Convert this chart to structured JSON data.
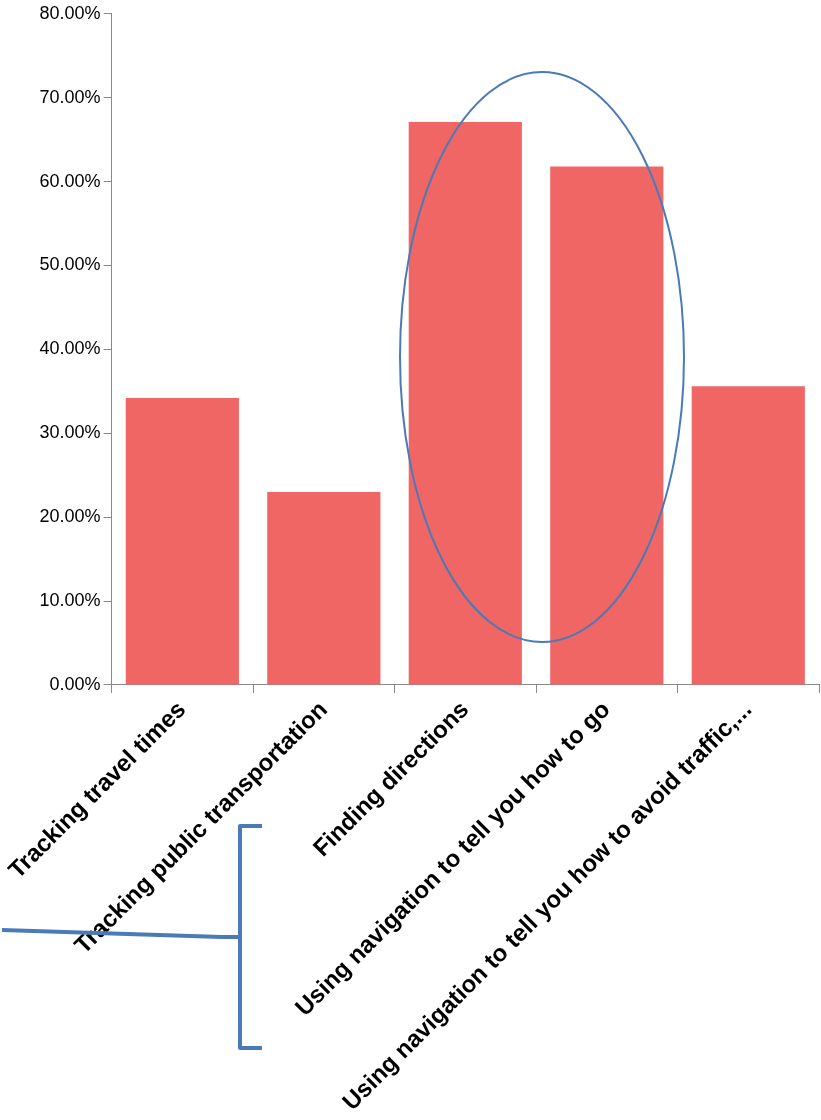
{
  "chart_data": {
    "type": "bar",
    "categories": [
      "Tracking travel times",
      "Tracking public transportation",
      "Finding directions",
      "Using navigation to tell you how to go",
      "Using navigation to tell you how to avoid traffic,..."
    ],
    "values": [
      34.2,
      23.0,
      67.1,
      61.8,
      35.6
    ],
    "color": "#f06664",
    "ylim": [
      0,
      80
    ],
    "yticks": [
      {
        "value": 0,
        "label": "0.00%"
      },
      {
        "value": 10,
        "label": "10.00%"
      },
      {
        "value": 20,
        "label": "20.00%"
      },
      {
        "value": 30,
        "label": "30.00%"
      },
      {
        "value": 40,
        "label": "40.00%"
      },
      {
        "value": 50,
        "label": "50.00%"
      },
      {
        "value": 60,
        "label": "60.00%"
      },
      {
        "value": 70,
        "label": "70.00%"
      },
      {
        "value": 80,
        "label": "80.00%"
      }
    ],
    "grid": false,
    "legend": false
  }
}
